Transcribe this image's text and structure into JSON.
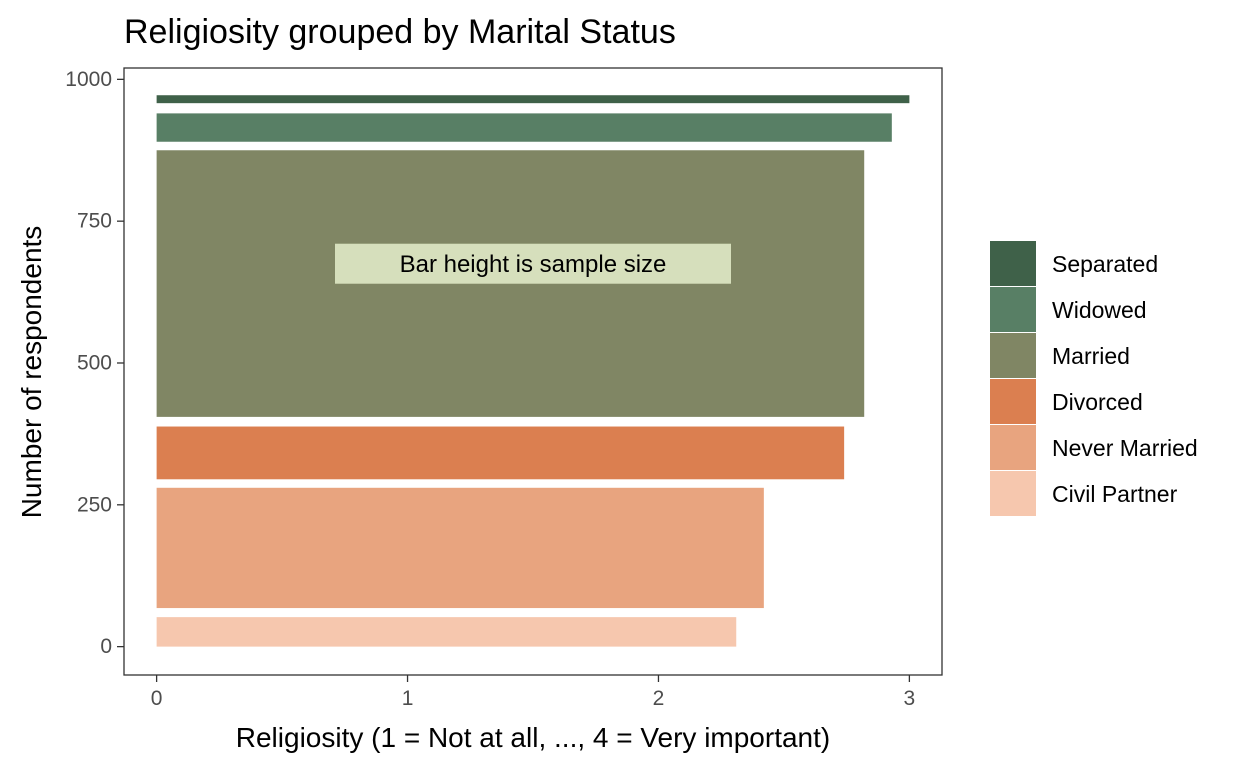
{
  "chart_data": {
    "type": "bar",
    "orientation": "horizontal",
    "title": "Religiosity grouped by Marital Status",
    "xlabel": "Religiosity (1 = Not at all, ..., 4 = Very important)",
    "ylabel": "Number of respondents",
    "xlim": [
      -0.13,
      3.13
    ],
    "ylim": [
      -50,
      1020
    ],
    "x_ticks": [
      0,
      1,
      2,
      3
    ],
    "y_ticks": [
      0,
      250,
      500,
      750,
      1000
    ],
    "grid": false,
    "legend_position": "right",
    "annotation": {
      "text": "Bar height is sample size",
      "x": 1.5,
      "y": 675,
      "fill": "#d6dfbc"
    },
    "series": [
      {
        "name": "Separated",
        "value": 3.0,
        "ymin": 958,
        "ymax": 972,
        "color": "#3f6149"
      },
      {
        "name": "Widowed",
        "value": 2.93,
        "ymin": 890,
        "ymax": 940,
        "color": "#587f65"
      },
      {
        "name": "Married",
        "value": 2.82,
        "ymin": 405,
        "ymax": 875,
        "color": "#808664"
      },
      {
        "name": "Divorced",
        "value": 2.74,
        "ymin": 295,
        "ymax": 388,
        "color": "#db7f50"
      },
      {
        "name": "Never Married",
        "value": 2.42,
        "ymin": 68,
        "ymax": 280,
        "color": "#e8a47f"
      },
      {
        "name": "Civil Partner",
        "value": 2.31,
        "ymin": 0,
        "ymax": 52,
        "color": "#f6c7ae"
      }
    ]
  }
}
